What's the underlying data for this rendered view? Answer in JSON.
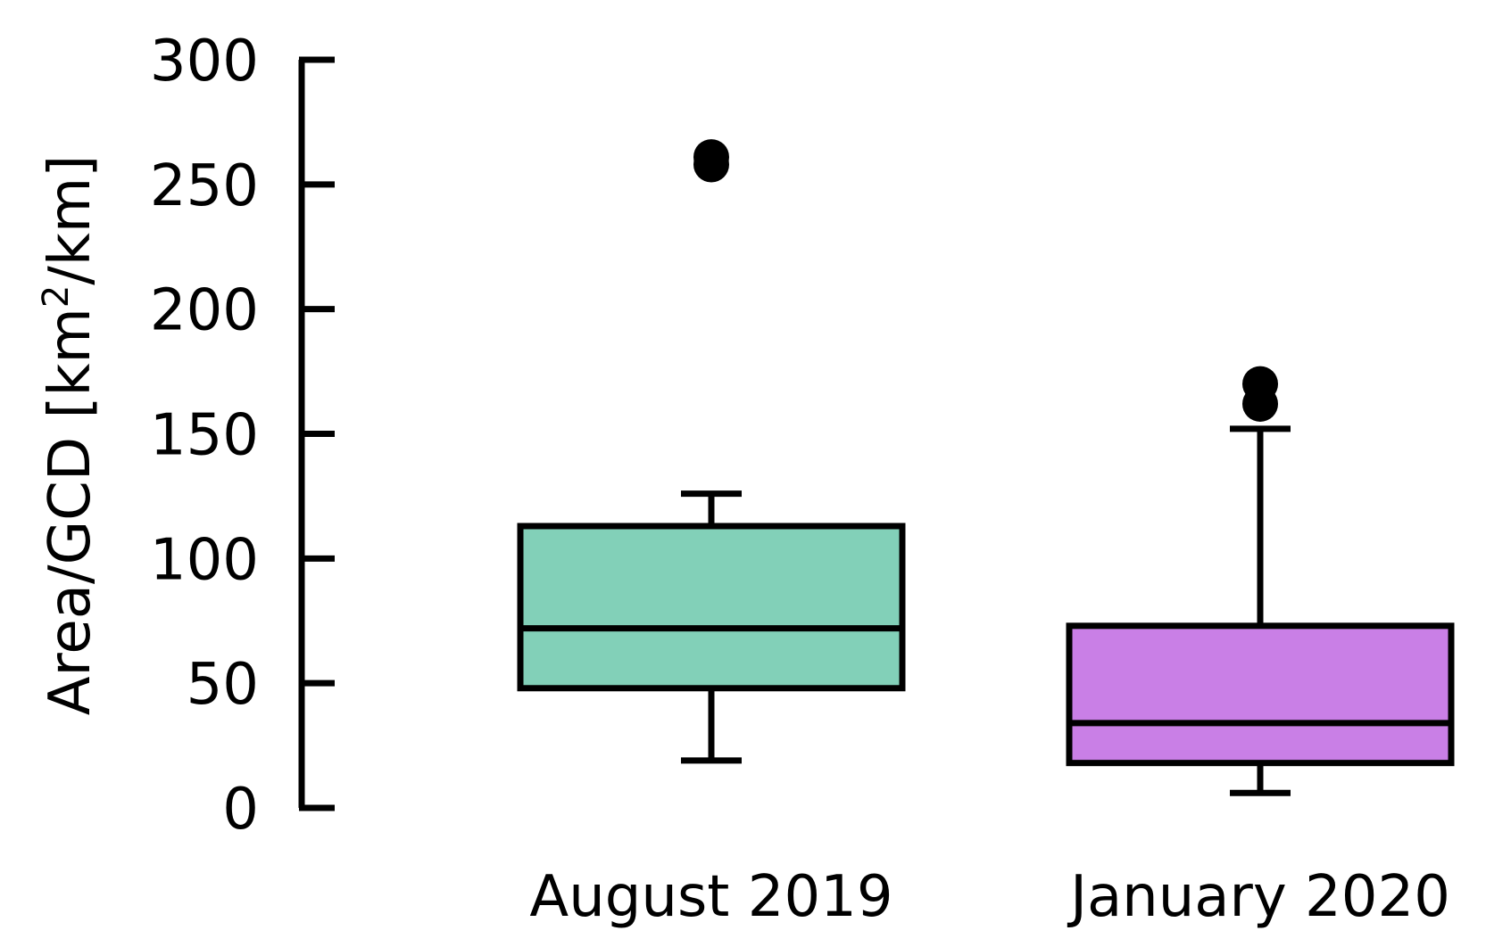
{
  "chart_data": {
    "type": "box",
    "ylabel": "Area/GCD [km²/km]",
    "ylabel_parts": {
      "before": "Area/GCD [km",
      "sup": "2",
      "after": "/km]"
    },
    "ylim": [
      0,
      300
    ],
    "yticks": [
      0,
      50,
      100,
      150,
      200,
      250,
      300
    ],
    "ytick_labels": [
      "0",
      "50",
      "100",
      "150",
      "200",
      "250",
      "300"
    ],
    "grid": false,
    "categories": [
      "August 2019",
      "January 2020"
    ],
    "boxes": [
      {
        "label": "August 2019",
        "color": "#82d0b8",
        "whisker_low": 19,
        "q1": 48,
        "median": 72,
        "q3": 113,
        "whisker_high": 126,
        "outliers": [
          261,
          258
        ]
      },
      {
        "label": "January 2020",
        "color": "#c97fe6",
        "whisker_low": 6,
        "q1": 18,
        "median": 34,
        "q3": 73,
        "whisker_high": 152,
        "outliers": [
          170,
          162
        ]
      }
    ]
  }
}
